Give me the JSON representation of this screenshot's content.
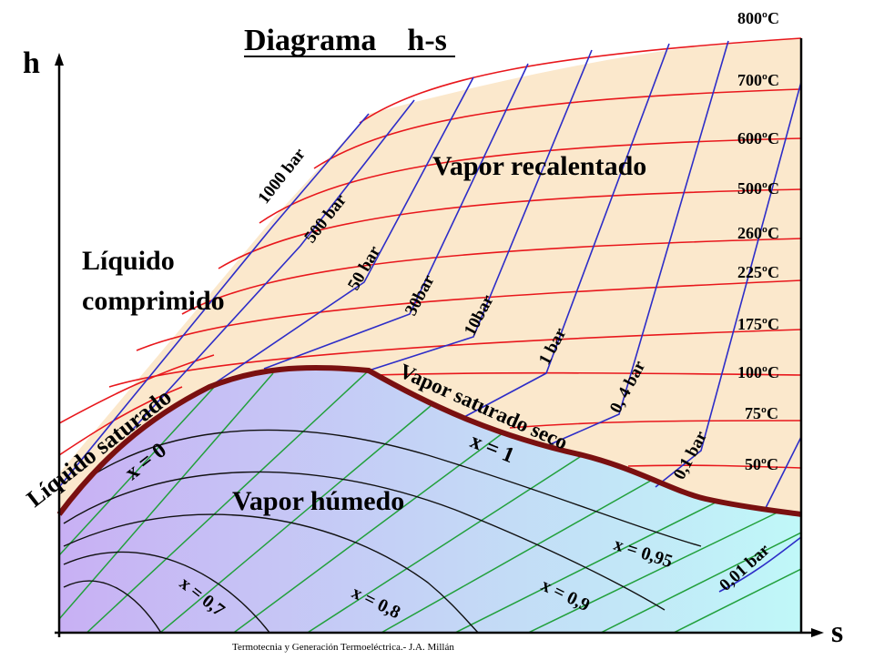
{
  "title": "Diagrama    h-s",
  "axes": {
    "y_label": "h",
    "x_label": "s"
  },
  "regions": {
    "superheated": "Vapor recalentado",
    "compressed_line1": "Líquido",
    "compressed_line2": "comprimido",
    "wet": "Vapor húmedo"
  },
  "curves": {
    "saturated_liquid": "Líquido saturado",
    "saturated_vapor": "Vapor saturado seco",
    "x0": "x = 0",
    "x1": "x = 1"
  },
  "isotherms": [
    "800ºC",
    "700ºC",
    "600ºC",
    "500ºC",
    "260ºC",
    "225ºC",
    "175ºC",
    "100ºC",
    "75ºC",
    "50ºC"
  ],
  "isobars": [
    "1000 bar",
    "500 bar",
    "50 bar",
    "30bar",
    "10bar",
    "1 bar",
    "0, 4 bar",
    "0,1 bar",
    "0,01 bar"
  ],
  "quality_lines": [
    "x = 0,95",
    "x = 0,9",
    "x = 0,8",
    "x = 0,7"
  ],
  "footer": "Termotecnia y Generación Termoeléctrica.- J.A. Millán",
  "colors": {
    "isotherm": "#e8171c",
    "isobar": "#2d2dc8",
    "quality_grid": "#22a03c",
    "saturation_dome": "#7a1010",
    "superheated_fill": "#fbe8cc",
    "wet_left": "#c8b0f4",
    "wet_right": "#c0f8f8"
  }
}
